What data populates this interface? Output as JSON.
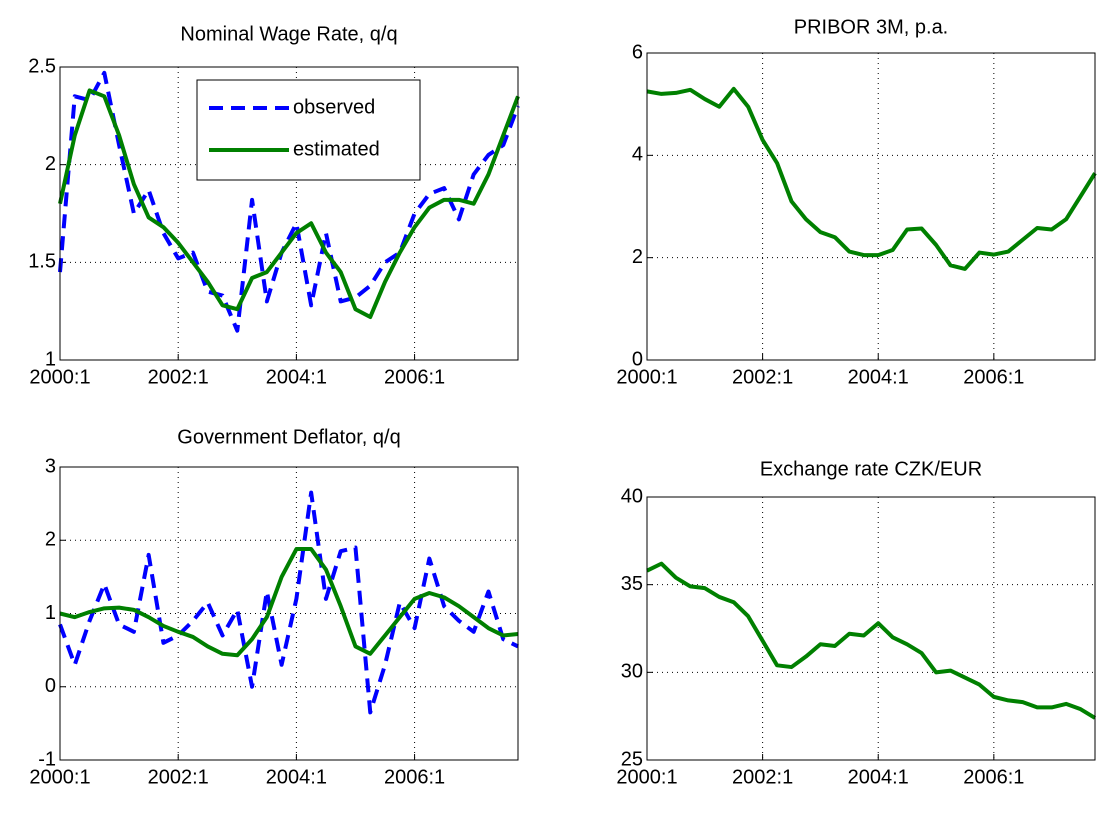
{
  "chart_data": [
    {
      "type": "line",
      "title": "Nominal Wage Rate, q/q",
      "x": [
        "2000:1",
        "2000:2",
        "2000:3",
        "2000:4",
        "2001:1",
        "2001:2",
        "2001:3",
        "2001:4",
        "2002:1",
        "2002:2",
        "2002:3",
        "2002:4",
        "2003:1",
        "2003:2",
        "2003:3",
        "2003:4",
        "2004:1",
        "2004:2",
        "2004:3",
        "2004:4",
        "2005:1",
        "2005:2",
        "2005:3",
        "2005:4",
        "2006:1",
        "2006:2",
        "2006:3",
        "2006:4",
        "2007:1",
        "2007:2",
        "2007:3",
        "2007:4"
      ],
      "xlim": [
        "2000:1",
        "2007:4"
      ],
      "xticks": [
        "2000:1",
        "2002:1",
        "2004:1",
        "2006:1"
      ],
      "ylim": [
        1,
        2.5
      ],
      "yticks": [
        1,
        1.5,
        2,
        2.5
      ],
      "grid": true,
      "legend": "upper center",
      "series": [
        {
          "name": "observed",
          "color": "#0000ff",
          "linestyle": "dashed",
          "values": [
            1.45,
            2.35,
            2.33,
            2.47,
            2.1,
            1.75,
            1.87,
            1.65,
            1.52,
            1.55,
            1.35,
            1.33,
            1.15,
            1.82,
            1.3,
            1.55,
            1.7,
            1.28,
            1.65,
            1.3,
            1.32,
            1.38,
            1.5,
            1.55,
            1.75,
            1.85,
            1.88,
            1.72,
            1.95,
            2.05,
            2.1,
            2.3
          ]
        },
        {
          "name": "estimated",
          "color": "#008000",
          "linestyle": "solid",
          "values": [
            1.8,
            2.15,
            2.38,
            2.35,
            2.15,
            1.9,
            1.73,
            1.68,
            1.6,
            1.5,
            1.4,
            1.28,
            1.26,
            1.42,
            1.45,
            1.55,
            1.65,
            1.7,
            1.55,
            1.45,
            1.26,
            1.22,
            1.4,
            1.55,
            1.68,
            1.78,
            1.82,
            1.82,
            1.8,
            1.95,
            2.15,
            2.35
          ]
        }
      ]
    },
    {
      "type": "line",
      "title": "PRIBOR 3M, p.a.",
      "x": [
        "2000:1",
        "2000:2",
        "2000:3",
        "2000:4",
        "2001:1",
        "2001:2",
        "2001:3",
        "2001:4",
        "2002:1",
        "2002:2",
        "2002:3",
        "2002:4",
        "2003:1",
        "2003:2",
        "2003:3",
        "2003:4",
        "2004:1",
        "2004:2",
        "2004:3",
        "2004:4",
        "2005:1",
        "2005:2",
        "2005:3",
        "2005:4",
        "2006:1",
        "2006:2",
        "2006:3",
        "2006:4",
        "2007:1",
        "2007:2",
        "2007:3",
        "2007:4"
      ],
      "xlim": [
        "2000:1",
        "2007:4"
      ],
      "xticks": [
        "2000:1",
        "2002:1",
        "2004:1",
        "2006:1"
      ],
      "ylim": [
        0,
        6
      ],
      "yticks": [
        0,
        2,
        4,
        6
      ],
      "grid": true,
      "series": [
        {
          "color": "#008000",
          "linestyle": "solid",
          "values": [
            5.25,
            5.2,
            5.22,
            5.28,
            5.1,
            4.95,
            5.3,
            4.95,
            4.3,
            3.85,
            3.1,
            2.75,
            2.5,
            2.4,
            2.12,
            2.05,
            2.05,
            2.15,
            2.55,
            2.57,
            2.25,
            1.85,
            1.78,
            2.1,
            2.06,
            2.12,
            2.35,
            2.58,
            2.55,
            2.75,
            3.2,
            3.65
          ]
        }
      ]
    },
    {
      "type": "line",
      "title": "Government Deflator, q/q",
      "x": [
        "2000:1",
        "2000:2",
        "2000:3",
        "2000:4",
        "2001:1",
        "2001:2",
        "2001:3",
        "2001:4",
        "2002:1",
        "2002:2",
        "2002:3",
        "2002:4",
        "2003:1",
        "2003:2",
        "2003:3",
        "2003:4",
        "2004:1",
        "2004:2",
        "2004:3",
        "2004:4",
        "2005:1",
        "2005:2",
        "2005:3",
        "2005:4",
        "2006:1",
        "2006:2",
        "2006:3",
        "2006:4",
        "2007:1",
        "2007:2",
        "2007:3",
        "2007:4"
      ],
      "xlim": [
        "2000:1",
        "2007:4"
      ],
      "xticks": [
        "2000:1",
        "2002:1",
        "2004:1",
        "2006:1"
      ],
      "ylim": [
        -1,
        3
      ],
      "yticks": [
        -1,
        0,
        1,
        2,
        3
      ],
      "grid": true,
      "series": [
        {
          "color": "#0000ff",
          "linestyle": "dashed",
          "values": [
            0.85,
            0.3,
            0.9,
            1.4,
            0.85,
            0.75,
            1.8,
            0.6,
            0.7,
            0.9,
            1.15,
            0.7,
            1.05,
            0.0,
            1.3,
            0.3,
            1.2,
            2.65,
            1.2,
            1.85,
            1.9,
            -0.35,
            0.3,
            1.15,
            0.8,
            1.75,
            1.1,
            0.9,
            0.75,
            1.3,
            0.65,
            0.55
          ]
        },
        {
          "color": "#008000",
          "linestyle": "solid",
          "values": [
            1.0,
            0.95,
            1.02,
            1.07,
            1.08,
            1.05,
            0.95,
            0.83,
            0.75,
            0.68,
            0.55,
            0.45,
            0.43,
            0.65,
            0.95,
            1.5,
            1.88,
            1.88,
            1.6,
            1.1,
            0.55,
            0.45,
            0.7,
            0.95,
            1.2,
            1.28,
            1.22,
            1.1,
            0.95,
            0.8,
            0.7,
            0.72
          ]
        }
      ]
    },
    {
      "type": "line",
      "title": "Exchange rate CZK/EUR",
      "x": [
        "2000:1",
        "2000:2",
        "2000:3",
        "2000:4",
        "2001:1",
        "2001:2",
        "2001:3",
        "2001:4",
        "2002:1",
        "2002:2",
        "2002:3",
        "2002:4",
        "2003:1",
        "2003:2",
        "2003:3",
        "2003:4",
        "2004:1",
        "2004:2",
        "2004:3",
        "2004:4",
        "2005:1",
        "2005:2",
        "2005:3",
        "2005:4",
        "2006:1",
        "2006:2",
        "2006:3",
        "2006:4",
        "2007:1",
        "2007:2",
        "2007:3",
        "2007:4"
      ],
      "xlim": [
        "2000:1",
        "2007:4"
      ],
      "xticks": [
        "2000:1",
        "2002:1",
        "2004:1",
        "2006:1"
      ],
      "ylim": [
        25,
        40
      ],
      "yticks": [
        25,
        30,
        35,
        40
      ],
      "grid": true,
      "series": [
        {
          "color": "#008000",
          "linestyle": "solid",
          "values": [
            35.8,
            36.2,
            35.4,
            34.9,
            34.8,
            34.3,
            34.0,
            33.2,
            31.8,
            30.4,
            30.3,
            30.9,
            31.6,
            31.5,
            32.2,
            32.1,
            32.8,
            32.0,
            31.6,
            31.1,
            30.0,
            30.1,
            29.7,
            29.3,
            28.6,
            28.4,
            28.3,
            28.0,
            28.0,
            28.2,
            27.9,
            27.4
          ]
        }
      ]
    }
  ]
}
